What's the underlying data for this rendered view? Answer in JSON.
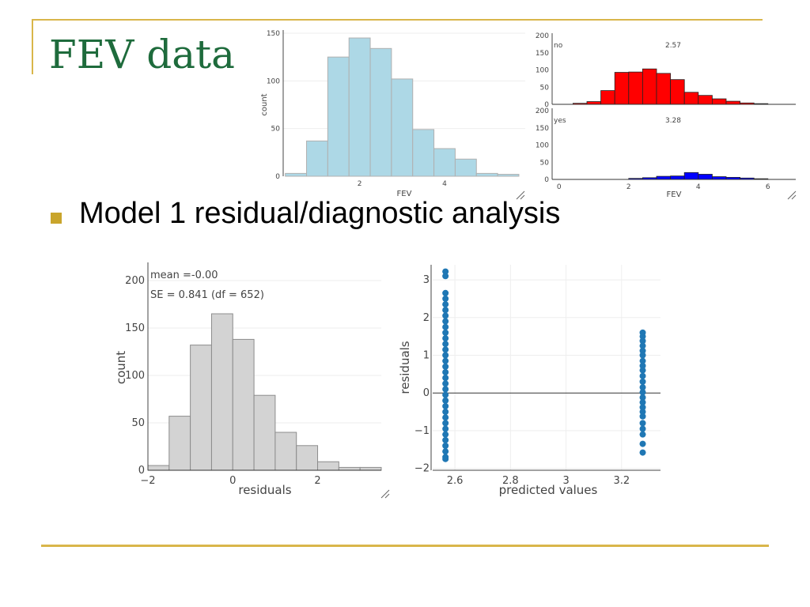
{
  "slide": {
    "title": "FEV data",
    "bullet": "Model 1 residual/diagnostic analysis"
  },
  "colors": {
    "title": "#1e6b3c",
    "accent": "#d9b64a",
    "bullet": "#c9a52c",
    "hist_light_blue": "#add8e6",
    "smoker_no": "#ff0000",
    "smoker_yes": "#0000ff",
    "residual_bars": "#d3d3d3",
    "scatter_points": "#1f77b4"
  },
  "chart_data": [
    {
      "id": "fev-histogram",
      "type": "bar",
      "title": "",
      "xlabel": "FEV",
      "ylabel": "count",
      "xlim": [
        0.2,
        5.9
      ],
      "ylim": [
        0,
        150
      ],
      "xticks": [
        "2",
        "4"
      ],
      "yticks": [
        "0",
        "50",
        "100",
        "150"
      ],
      "bin_width": 0.5,
      "bins_start": [
        0.25,
        0.75,
        1.25,
        1.75,
        2.25,
        2.75,
        3.25,
        3.75,
        4.25,
        4.75,
        5.25
      ],
      "values": [
        3,
        37,
        125,
        145,
        134,
        102,
        49,
        29,
        18,
        3,
        2
      ]
    },
    {
      "id": "fev-by-smoke",
      "type": "bar",
      "title": "",
      "xlabel": "FEV",
      "ylabel": "",
      "xlim": [
        -0.2,
        6.8
      ],
      "ylim": [
        0,
        200
      ],
      "xticks": [
        "0",
        "2",
        "4",
        "6"
      ],
      "yticks": [
        "0",
        "50",
        "100",
        "150",
        "200"
      ],
      "bin_width": 0.4,
      "bins_start": [
        0.4,
        0.8,
        1.2,
        1.6,
        2.0,
        2.4,
        2.8,
        3.2,
        3.6,
        4.0,
        4.4,
        4.8,
        5.2,
        5.6
      ],
      "series": [
        {
          "name": "no",
          "mean_label": "2.57",
          "values": [
            3,
            8,
            40,
            93,
            94,
            103,
            90,
            72,
            35,
            26,
            16,
            9,
            4,
            2
          ]
        },
        {
          "name": "yes",
          "mean_label": "3.28",
          "values": [
            0,
            0,
            0,
            0,
            3,
            5,
            9,
            10,
            20,
            15,
            8,
            6,
            4,
            2
          ]
        }
      ]
    },
    {
      "id": "residual-histogram",
      "type": "bar",
      "title": "",
      "annotations": [
        "mean =-0.00",
        "SE = 0.841 (df = 652)"
      ],
      "xlabel": "residuals",
      "ylabel": "count",
      "xlim": [
        -2,
        3.5
      ],
      "ylim": [
        0,
        200
      ],
      "xticks": [
        "−2",
        "0",
        "2"
      ],
      "yticks": [
        "0",
        "50",
        "100",
        "150",
        "200"
      ],
      "bin_width": 0.5,
      "bins_start": [
        -2.0,
        -1.5,
        -1.0,
        -0.5,
        0.0,
        0.5,
        1.0,
        1.5,
        2.0,
        2.5,
        3.0
      ],
      "values": [
        5,
        57,
        132,
        165,
        138,
        79,
        40,
        26,
        9,
        3,
        3
      ]
    },
    {
      "id": "residuals-vs-predicted",
      "type": "scatter",
      "title": "",
      "xlabel": "predicted values",
      "ylabel": "residuals",
      "xlim": [
        2.52,
        3.34
      ],
      "ylim": [
        -2.05,
        3.4
      ],
      "xticks": [
        "2.6",
        "2.8",
        "3",
        "3.2"
      ],
      "yticks": [
        "−2",
        "−1",
        "0",
        "1",
        "2",
        "3"
      ],
      "groups": [
        {
          "x": 2.566,
          "y": [
            3.22,
            3.1,
            2.65,
            2.5,
            2.35,
            2.2,
            2.05,
            1.9,
            1.75,
            1.6,
            1.45,
            1.3,
            1.15,
            1.0,
            0.85,
            0.7,
            0.55,
            0.4,
            0.25,
            0.1,
            -0.05,
            -0.2,
            -0.35,
            -0.5,
            -0.65,
            -0.8,
            -0.95,
            -1.1,
            -1.25,
            -1.4,
            -1.55,
            -1.7,
            -1.75
          ]
        },
        {
          "x": 3.276,
          "y": [
            1.6,
            1.5,
            1.38,
            1.25,
            1.12,
            1.0,
            0.85,
            0.72,
            0.6,
            0.45,
            0.3,
            0.15,
            0.02,
            -0.12,
            -0.25,
            -0.38,
            -0.5,
            -0.62,
            -0.8,
            -0.95,
            -1.1,
            -1.35,
            -1.58
          ]
        }
      ]
    }
  ]
}
